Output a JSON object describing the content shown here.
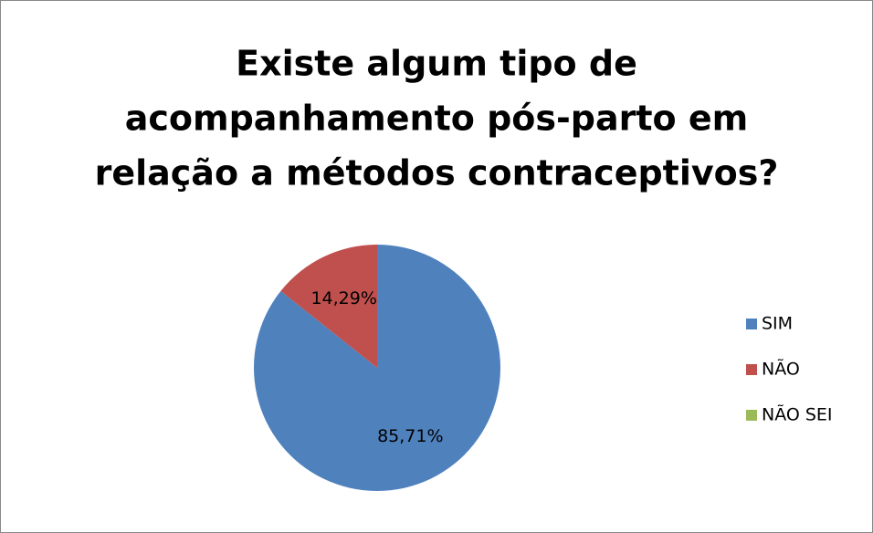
{
  "chart_data": {
    "type": "pie",
    "title": [
      "Existe algum tipo de",
      "acompanhamento pós-parto em",
      "relação a métodos contraceptivos?"
    ],
    "categories": [
      "SIM",
      "NÃO",
      "NÃO SEI"
    ],
    "values": [
      85.71,
      14.29,
      0
    ],
    "value_labels": [
      "85,71%",
      "14,29%",
      null
    ],
    "colors": [
      "#4f81bd",
      "#c0504d",
      "#9bbb59"
    ],
    "legend": "right"
  }
}
